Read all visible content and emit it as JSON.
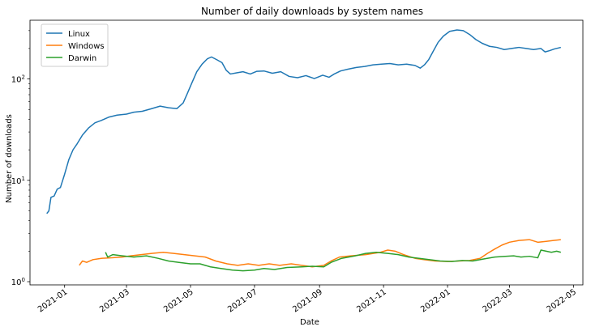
{
  "chart_data": {
    "type": "line",
    "title": "Number of daily downloads by system names",
    "xlabel": "Date",
    "ylabel": "Number of downloads",
    "yscale": "log",
    "ylim": [
      0.93,
      380
    ],
    "xlim": [
      "2020-11-29",
      "2022-05-10"
    ],
    "grid": false,
    "legend_position": "top-left",
    "x_ticks": [
      {
        "date": "2021-01-01",
        "label": "2021-01"
      },
      {
        "date": "2021-03-01",
        "label": "2021-03"
      },
      {
        "date": "2021-05-01",
        "label": "2021-05"
      },
      {
        "date": "2021-07-01",
        "label": "2021-07"
      },
      {
        "date": "2021-09-01",
        "label": "2021-09"
      },
      {
        "date": "2021-11-01",
        "label": "2021-11"
      },
      {
        "date": "2022-01-01",
        "label": "2022-01"
      },
      {
        "date": "2022-03-01",
        "label": "2022-03"
      },
      {
        "date": "2022-05-01",
        "label": "2022-05"
      }
    ],
    "y_ticks": [
      {
        "value": 1,
        "base": "10",
        "exp": "0"
      },
      {
        "value": 10,
        "base": "10",
        "exp": "1"
      },
      {
        "value": 100,
        "base": "10",
        "exp": "2"
      }
    ],
    "series": [
      {
        "name": "Linux",
        "color": "#1f77b4",
        "points": [
          [
            "2020-12-15",
            4.7
          ],
          [
            "2020-12-17",
            5.0
          ],
          [
            "2020-12-19",
            6.8
          ],
          [
            "2020-12-22",
            7.0
          ],
          [
            "2020-12-25",
            8.2
          ],
          [
            "2020-12-28",
            8.5
          ],
          [
            "2021-01-01",
            11.5
          ],
          [
            "2021-01-05",
            16
          ],
          [
            "2021-01-09",
            20
          ],
          [
            "2021-01-13",
            23
          ],
          [
            "2021-01-18",
            28
          ],
          [
            "2021-01-24",
            33
          ],
          [
            "2021-01-30",
            37
          ],
          [
            "2021-02-05",
            39
          ],
          [
            "2021-02-12",
            42
          ],
          [
            "2021-02-20",
            44
          ],
          [
            "2021-03-01",
            45
          ],
          [
            "2021-03-08",
            47
          ],
          [
            "2021-03-16",
            48
          ],
          [
            "2021-03-25",
            51
          ],
          [
            "2021-04-02",
            54
          ],
          [
            "2021-04-10",
            52
          ],
          [
            "2021-04-18",
            51
          ],
          [
            "2021-04-24",
            58
          ],
          [
            "2021-04-28",
            72
          ],
          [
            "2021-05-02",
            90
          ],
          [
            "2021-05-07",
            118
          ],
          [
            "2021-05-12",
            140
          ],
          [
            "2021-05-17",
            158
          ],
          [
            "2021-05-21",
            165
          ],
          [
            "2021-05-26",
            155
          ],
          [
            "2021-05-31",
            145
          ],
          [
            "2021-06-04",
            122
          ],
          [
            "2021-06-08",
            112
          ],
          [
            "2021-06-14",
            115
          ],
          [
            "2021-06-20",
            118
          ],
          [
            "2021-06-27",
            112
          ],
          [
            "2021-07-03",
            119
          ],
          [
            "2021-07-10",
            120
          ],
          [
            "2021-07-18",
            114
          ],
          [
            "2021-07-26",
            118
          ],
          [
            "2021-08-03",
            106
          ],
          [
            "2021-08-11",
            103
          ],
          [
            "2021-08-19",
            108
          ],
          [
            "2021-08-27",
            101
          ],
          [
            "2021-09-04",
            109
          ],
          [
            "2021-09-10",
            104
          ],
          [
            "2021-09-15",
            112
          ],
          [
            "2021-09-21",
            120
          ],
          [
            "2021-09-28",
            125
          ],
          [
            "2021-10-06",
            130
          ],
          [
            "2021-10-14",
            133
          ],
          [
            "2021-10-22",
            138
          ],
          [
            "2021-10-30",
            140
          ],
          [
            "2021-11-07",
            142
          ],
          [
            "2021-11-15",
            138
          ],
          [
            "2021-11-23",
            140
          ],
          [
            "2021-12-01",
            136
          ],
          [
            "2021-12-06",
            128
          ],
          [
            "2021-12-10",
            138
          ],
          [
            "2021-12-14",
            155
          ],
          [
            "2021-12-18",
            185
          ],
          [
            "2021-12-23",
            230
          ],
          [
            "2021-12-28",
            265
          ],
          [
            "2022-01-03",
            295
          ],
          [
            "2022-01-10",
            305
          ],
          [
            "2022-01-16",
            300
          ],
          [
            "2022-01-22",
            275
          ],
          [
            "2022-01-28",
            245
          ],
          [
            "2022-02-03",
            225
          ],
          [
            "2022-02-10",
            210
          ],
          [
            "2022-02-17",
            205
          ],
          [
            "2022-02-24",
            195
          ],
          [
            "2022-03-03",
            200
          ],
          [
            "2022-03-10",
            205
          ],
          [
            "2022-03-17",
            200
          ],
          [
            "2022-03-24",
            195
          ],
          [
            "2022-03-31",
            200
          ],
          [
            "2022-04-04",
            185
          ],
          [
            "2022-04-08",
            190
          ],
          [
            "2022-04-13",
            198
          ],
          [
            "2022-04-19",
            205
          ]
        ]
      },
      {
        "name": "Windows",
        "color": "#ff7f0e",
        "points": [
          [
            "2021-01-15",
            1.45
          ],
          [
            "2021-01-18",
            1.6
          ],
          [
            "2021-01-22",
            1.55
          ],
          [
            "2021-01-28",
            1.65
          ],
          [
            "2021-02-05",
            1.7
          ],
          [
            "2021-02-15",
            1.72
          ],
          [
            "2021-02-25",
            1.75
          ],
          [
            "2021-03-05",
            1.8
          ],
          [
            "2021-03-15",
            1.85
          ],
          [
            "2021-03-25",
            1.9
          ],
          [
            "2021-04-05",
            1.95
          ],
          [
            "2021-04-15",
            1.9
          ],
          [
            "2021-04-25",
            1.85
          ],
          [
            "2021-05-05",
            1.8
          ],
          [
            "2021-05-15",
            1.75
          ],
          [
            "2021-05-25",
            1.6
          ],
          [
            "2021-06-05",
            1.5
          ],
          [
            "2021-06-15",
            1.45
          ],
          [
            "2021-06-25",
            1.5
          ],
          [
            "2021-07-05",
            1.45
          ],
          [
            "2021-07-15",
            1.5
          ],
          [
            "2021-07-25",
            1.45
          ],
          [
            "2021-08-05",
            1.5
          ],
          [
            "2021-08-15",
            1.45
          ],
          [
            "2021-08-25",
            1.4
          ],
          [
            "2021-09-05",
            1.45
          ],
          [
            "2021-09-12",
            1.6
          ],
          [
            "2021-09-20",
            1.75
          ],
          [
            "2021-10-01",
            1.8
          ],
          [
            "2021-10-15",
            1.85
          ],
          [
            "2021-10-29",
            1.95
          ],
          [
            "2021-11-05",
            2.05
          ],
          [
            "2021-11-12",
            2.0
          ],
          [
            "2021-11-20",
            1.85
          ],
          [
            "2021-12-01",
            1.7
          ],
          [
            "2021-12-10",
            1.65
          ],
          [
            "2021-12-20",
            1.6
          ],
          [
            "2022-01-01",
            1.58
          ],
          [
            "2022-01-12",
            1.6
          ],
          [
            "2022-01-22",
            1.62
          ],
          [
            "2022-02-01",
            1.7
          ],
          [
            "2022-02-08",
            1.9
          ],
          [
            "2022-02-15",
            2.1
          ],
          [
            "2022-02-22",
            2.3
          ],
          [
            "2022-03-01",
            2.45
          ],
          [
            "2022-03-10",
            2.55
          ],
          [
            "2022-03-20",
            2.6
          ],
          [
            "2022-03-28",
            2.45
          ],
          [
            "2022-04-05",
            2.5
          ],
          [
            "2022-04-12",
            2.55
          ],
          [
            "2022-04-19",
            2.6
          ]
        ]
      },
      {
        "name": "Darwin",
        "color": "#2ca02c",
        "points": [
          [
            "2021-02-09",
            1.95
          ],
          [
            "2021-02-11",
            1.75
          ],
          [
            "2021-02-16",
            1.85
          ],
          [
            "2021-02-25",
            1.8
          ],
          [
            "2021-03-08",
            1.75
          ],
          [
            "2021-03-20",
            1.8
          ],
          [
            "2021-03-31",
            1.7
          ],
          [
            "2021-04-10",
            1.6
          ],
          [
            "2021-04-20",
            1.55
          ],
          [
            "2021-05-01",
            1.5
          ],
          [
            "2021-05-10",
            1.5
          ],
          [
            "2021-05-20",
            1.4
          ],
          [
            "2021-05-30",
            1.35
          ],
          [
            "2021-06-10",
            1.3
          ],
          [
            "2021-06-20",
            1.28
          ],
          [
            "2021-07-01",
            1.3
          ],
          [
            "2021-07-10",
            1.35
          ],
          [
            "2021-07-20",
            1.32
          ],
          [
            "2021-08-01",
            1.38
          ],
          [
            "2021-08-15",
            1.4
          ],
          [
            "2021-08-25",
            1.42
          ],
          [
            "2021-09-05",
            1.4
          ],
          [
            "2021-09-12",
            1.55
          ],
          [
            "2021-09-22",
            1.7
          ],
          [
            "2021-10-05",
            1.8
          ],
          [
            "2021-10-15",
            1.9
          ],
          [
            "2021-10-25",
            1.95
          ],
          [
            "2021-11-05",
            1.9
          ],
          [
            "2021-11-15",
            1.85
          ],
          [
            "2021-11-25",
            1.75
          ],
          [
            "2021-12-05",
            1.7
          ],
          [
            "2021-12-15",
            1.65
          ],
          [
            "2021-12-25",
            1.6
          ],
          [
            "2022-01-05",
            1.58
          ],
          [
            "2022-01-15",
            1.62
          ],
          [
            "2022-01-25",
            1.6
          ],
          [
            "2022-02-05",
            1.68
          ],
          [
            "2022-02-15",
            1.75
          ],
          [
            "2022-02-25",
            1.78
          ],
          [
            "2022-03-05",
            1.8
          ],
          [
            "2022-03-12",
            1.75
          ],
          [
            "2022-03-20",
            1.78
          ],
          [
            "2022-03-28",
            1.72
          ],
          [
            "2022-03-31",
            2.05
          ],
          [
            "2022-04-05",
            2.0
          ],
          [
            "2022-04-10",
            1.95
          ],
          [
            "2022-04-15",
            2.0
          ],
          [
            "2022-04-19",
            1.95
          ]
        ]
      }
    ]
  }
}
